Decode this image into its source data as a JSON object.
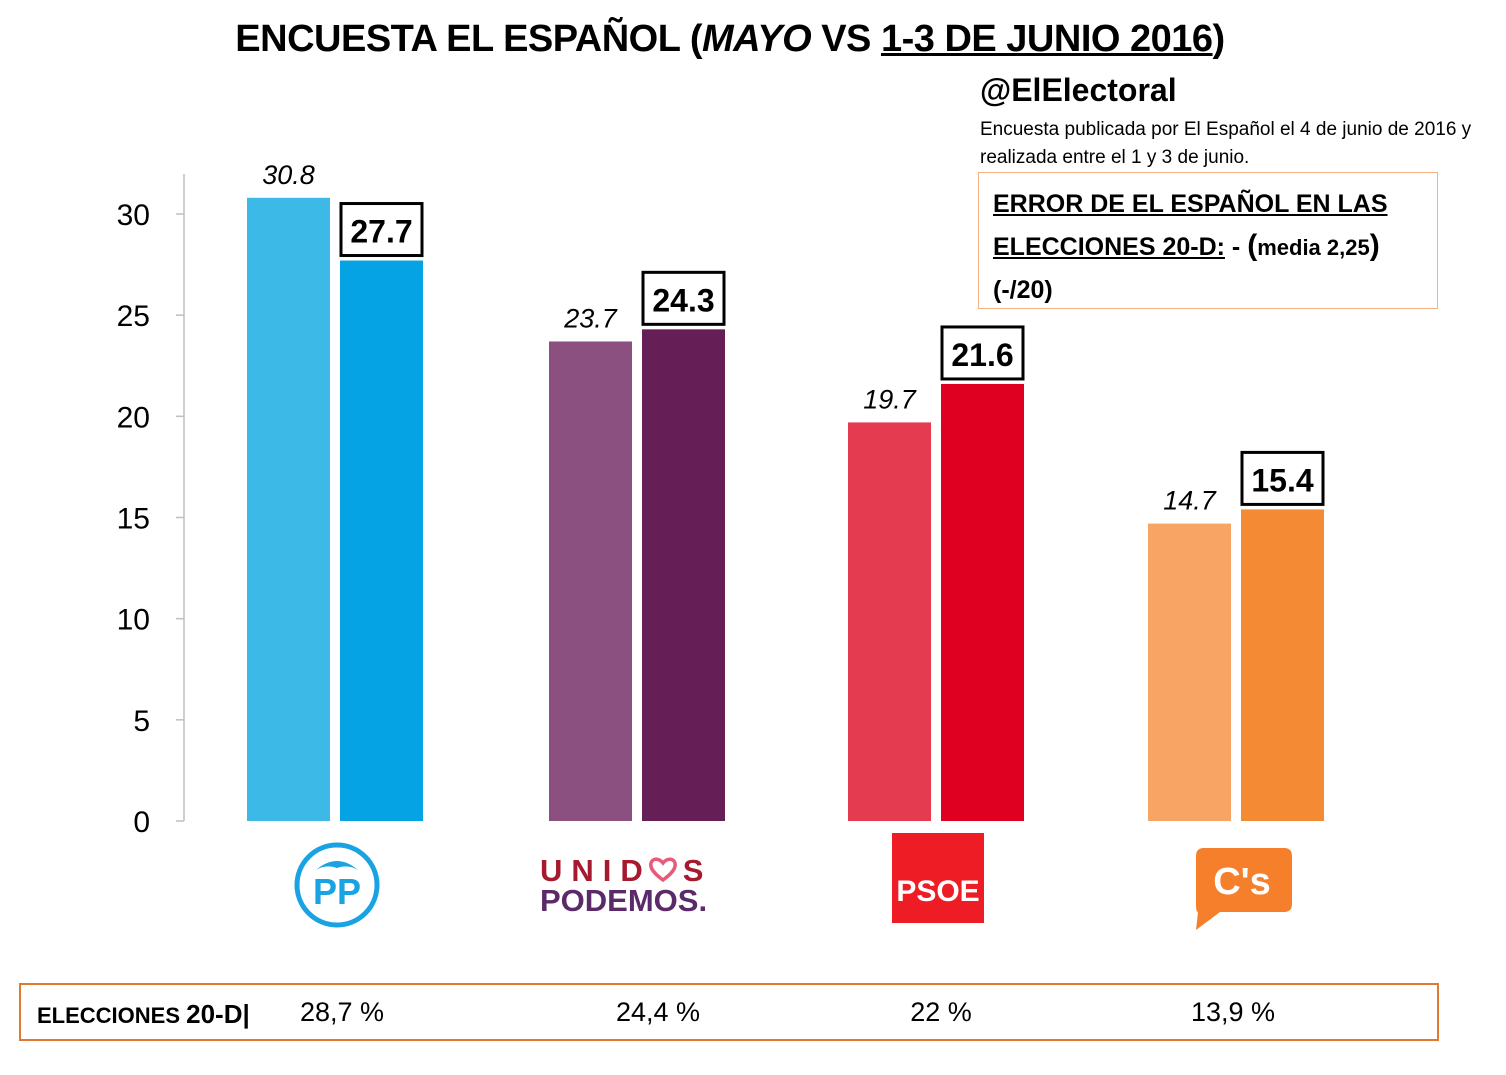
{
  "title": {
    "prefix": "ENCUESTA EL ESPAÑOL (",
    "italic": "MAYO",
    "middle": " VS ",
    "underlined": "1-3 DE JUNIO 2016",
    "suffix": ")"
  },
  "handle": "@ElElectoral",
  "subtitle": "Encuesta publicada por El Español el 4 de junio de 2016 y realizada entre el 1 y 3 de junio.",
  "error_box": {
    "line1": "ERROR DE EL ESPAÑOL EN LAS",
    "line2_u": "ELECCIONES  20-D:",
    "line2_rest_a": " - ",
    "line2_paren": "(",
    "line2_media": "media 2,25",
    "line2_close": ")",
    "line3": "(-/20)"
  },
  "chart_data": {
    "type": "bar",
    "categories": [
      "PP",
      "UNIDOS PODEMOS",
      "PSOE",
      "C's"
    ],
    "series": [
      {
        "name": "Mayo",
        "values": [
          30.8,
          23.7,
          19.7,
          14.7
        ],
        "colors": [
          "#3cb9e7",
          "#8b5080",
          "#e43b50",
          "#f8a464"
        ]
      },
      {
        "name": "1-3 de junio 2016",
        "values": [
          27.7,
          24.3,
          21.6,
          15.4
        ],
        "colors": [
          "#05a3e3",
          "#661e56",
          "#df0021",
          "#f58a34"
        ]
      }
    ],
    "ylim": [
      0,
      32
    ],
    "yticks": [
      0,
      5,
      10,
      15,
      20,
      25,
      30
    ],
    "xlabel": "",
    "ylabel": ""
  },
  "logos": {
    "pp": "PP",
    "podemos_top_a": "UNID",
    "podemos_top_b": "S",
    "podemos_bottom": "PODEMOS.",
    "psoe": "PSOE",
    "cs": "C's"
  },
  "elections": {
    "label_a": "ELECCIONES ",
    "label_b": "20-D",
    "separator": "|",
    "values": [
      "28,7 %",
      "24,4 %",
      "22 %",
      "13,9 %"
    ]
  }
}
